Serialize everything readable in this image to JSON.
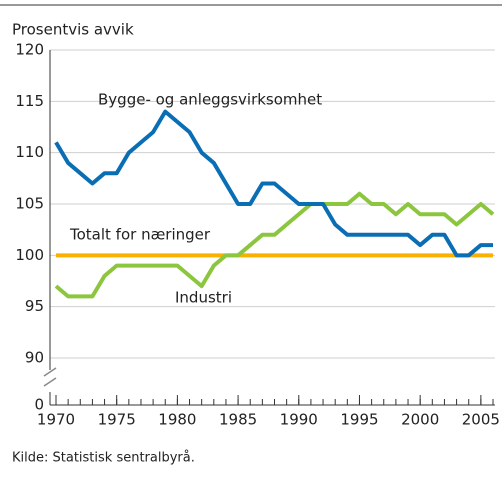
{
  "chart_data": {
    "type": "line",
    "y_axis_label": "Prosentvis avvik",
    "source": "Kilde: Statistisk sentralbyrå.",
    "x": [
      1970,
      1971,
      1972,
      1973,
      1974,
      1975,
      1976,
      1977,
      1978,
      1979,
      1980,
      1981,
      1982,
      1983,
      1984,
      1985,
      1986,
      1987,
      1988,
      1989,
      1990,
      1991,
      1992,
      1993,
      1994,
      1995,
      1996,
      1997,
      1998,
      1999,
      2000,
      2001,
      2002,
      2003,
      2004,
      2005,
      2006
    ],
    "series": [
      {
        "name": "Bygge- og anleggsvirksomhet",
        "color": "#0a6eb4",
        "values": [
          111,
          109,
          108,
          107,
          108,
          108,
          110,
          111,
          112,
          114,
          113,
          112,
          110,
          109,
          107,
          105,
          105,
          107,
          107,
          106,
          105,
          105,
          105,
          103,
          102,
          102,
          102,
          102,
          102,
          102,
          101,
          102,
          102,
          100,
          100,
          101,
          101
        ]
      },
      {
        "name": "Industri",
        "color": "#8cc63f",
        "values": [
          97,
          96,
          96,
          96,
          98,
          99,
          99,
          99,
          99,
          99,
          99,
          98,
          97,
          99,
          100,
          100,
          101,
          102,
          102,
          103,
          104,
          105,
          105,
          105,
          105,
          106,
          105,
          105,
          104,
          105,
          104,
          104,
          104,
          103,
          104,
          105,
          104
        ]
      },
      {
        "name": "Totalt for næringer",
        "color": "#f9b000",
        "values": [
          100,
          100,
          100,
          100,
          100,
          100,
          100,
          100,
          100,
          100,
          100,
          100,
          100,
          100,
          100,
          100,
          100,
          100,
          100,
          100,
          100,
          100,
          100,
          100,
          100,
          100,
          100,
          100,
          100,
          100,
          100,
          100,
          100,
          100,
          100,
          100,
          100
        ]
      }
    ],
    "xlim": [
      1970,
      2006
    ],
    "xticks": [
      1970,
      1975,
      1980,
      1985,
      1990,
      1995,
      2000,
      2005
    ],
    "minor_xticks": [
      1970,
      1971,
      1972,
      1973,
      1974,
      1975,
      1976,
      1977,
      1978,
      1979,
      1980,
      1981,
      1982,
      1983,
      1984,
      1985,
      1986,
      1987,
      1988,
      1989,
      1990,
      1991,
      1992,
      1993,
      1994,
      1995,
      1996,
      1997,
      1998,
      1999,
      2000,
      2001,
      2002,
      2003,
      2004,
      2005,
      2006
    ],
    "ylim": [
      0,
      120
    ],
    "axis_break": [
      0,
      90
    ],
    "yticks": [
      0,
      90,
      95,
      100,
      105,
      110,
      115,
      120
    ],
    "grid": true
  }
}
